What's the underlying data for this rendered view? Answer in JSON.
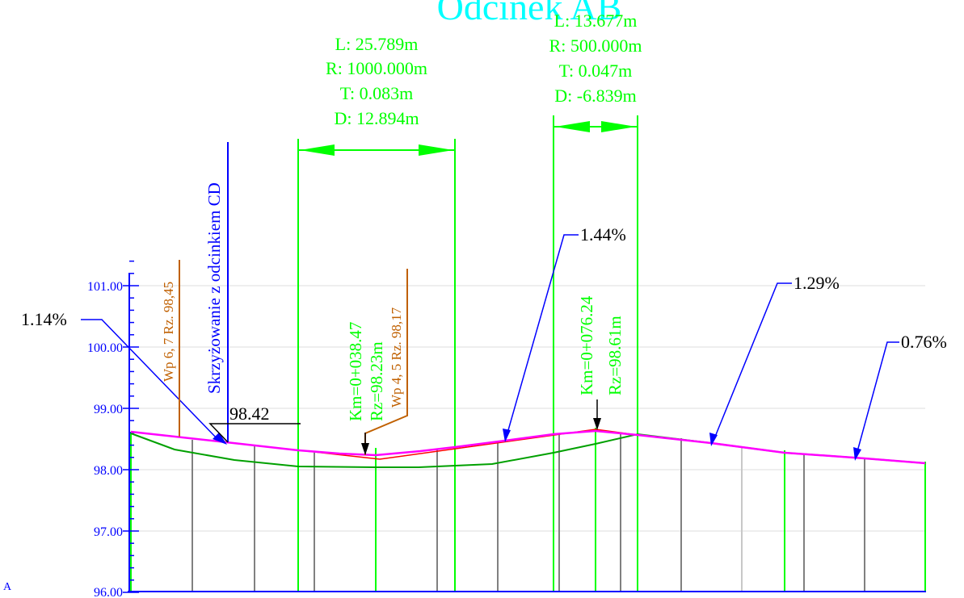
{
  "title": "Odcinek AB",
  "colors": {
    "axis": "#0000ff",
    "green": "#00ff00",
    "dark_green": "#00a000",
    "design": "#ff00ff",
    "red": "#ff0000",
    "orange": "#c06000",
    "grey": "#808080",
    "light_grey": "#c8c8c8",
    "title": "#00ffff",
    "black": "#000000"
  },
  "axis": {
    "labels": [
      "101.00",
      "100.00",
      "99.00",
      "98.00",
      "97.00",
      "96.00"
    ],
    "values": [
      101,
      100,
      99,
      98,
      97,
      96
    ]
  },
  "corner_label": "A",
  "vertical_curves": [
    {
      "length": "L: 25.789m",
      "radius": "R: 1000.000m",
      "tangent": "T: 0.083m",
      "d": "D: 12.894m"
    },
    {
      "length": "L: 13.677m",
      "radius": "R: 500.000m",
      "tangent": "T: 0.047m",
      "d": "D: -6.839m"
    }
  ],
  "grades": [
    "1.14%",
    "1.44%",
    "1.29%",
    "0.76%"
  ],
  "intersection_label": "Skrzyżowanie z odcinkiem CD",
  "intersection_elevation": "98.42",
  "wells": [
    "Wp 6, 7  Rz. 98,45",
    "Wp 4, 5  Rz. 98,17"
  ],
  "low_point": {
    "km": "Km=0+038.47",
    "rz": "Rz=98.23m"
  },
  "high_point": {
    "km": "Km=0+076.24",
    "rz": "Rz=98.61m"
  }
}
